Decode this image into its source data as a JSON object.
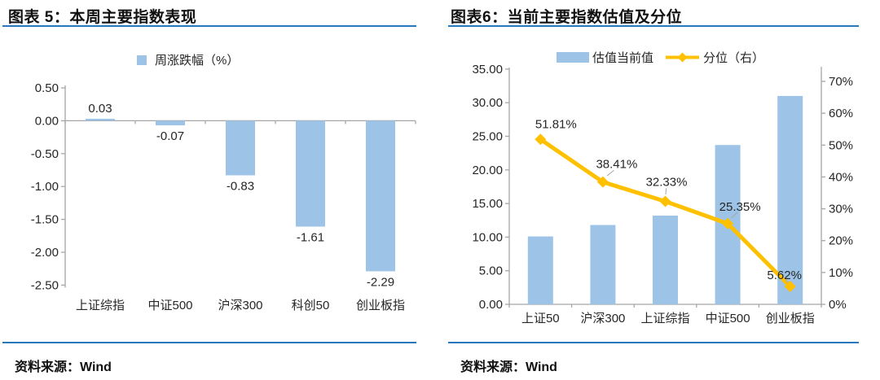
{
  "colors": {
    "rule_blue": "#2878BE",
    "bar_blue": "#9DC3E6",
    "line_amber": "#FFC000",
    "axis_gray": "#A6A6A6",
    "leader_gray": "#A6A6A6",
    "label_dark": "#262626"
  },
  "chart_data": [
    {
      "type": "bar",
      "title": "图表 5：本周主要指数表现",
      "legend": [
        "周涨跌幅（%）"
      ],
      "categories": [
        "上证综指",
        "中证500",
        "沪深300",
        "科创50",
        "创业板指"
      ],
      "values": [
        0.03,
        -0.07,
        -0.83,
        -1.61,
        -2.29
      ],
      "data_labels": [
        "0.03",
        "-0.07",
        "-0.83",
        "-1.61",
        "-2.29"
      ],
      "ylim": [
        -2.5,
        0.5
      ],
      "yticks": [
        "0.50",
        "0.00",
        "-0.50",
        "-1.00",
        "-1.50",
        "-2.00",
        "-2.50"
      ],
      "grid": false,
      "source": "资料来源：Wind"
    },
    {
      "type": "combo_bar_line",
      "title": "图表6：当前主要指数估值及分位",
      "categories": [
        "上证50",
        "沪深300",
        "上证综指",
        "中证500",
        "创业板指"
      ],
      "series": [
        {
          "name": "估值当前值",
          "type": "bar",
          "axis": "left",
          "values": [
            10.1,
            11.8,
            13.2,
            23.7,
            31.0
          ]
        },
        {
          "name": "分位（右）",
          "type": "line",
          "axis": "right",
          "values": [
            51.81,
            38.41,
            32.33,
            25.35,
            5.62
          ],
          "data_labels": [
            "51.81%",
            "38.41%",
            "32.33%",
            "25.35%",
            "5.62%"
          ]
        }
      ],
      "left_ylim": [
        0,
        35
      ],
      "left_yticks": [
        "35.00",
        "30.00",
        "25.00",
        "20.00",
        "15.00",
        "10.00",
        "5.00",
        "0.00"
      ],
      "right_ylim": [
        0,
        70
      ],
      "right_yticks": [
        "70%",
        "60%",
        "50%",
        "40%",
        "30%",
        "20%",
        "10%",
        "0%"
      ],
      "grid": false,
      "legend_position": "top",
      "source": "资料来源：Wind"
    }
  ]
}
